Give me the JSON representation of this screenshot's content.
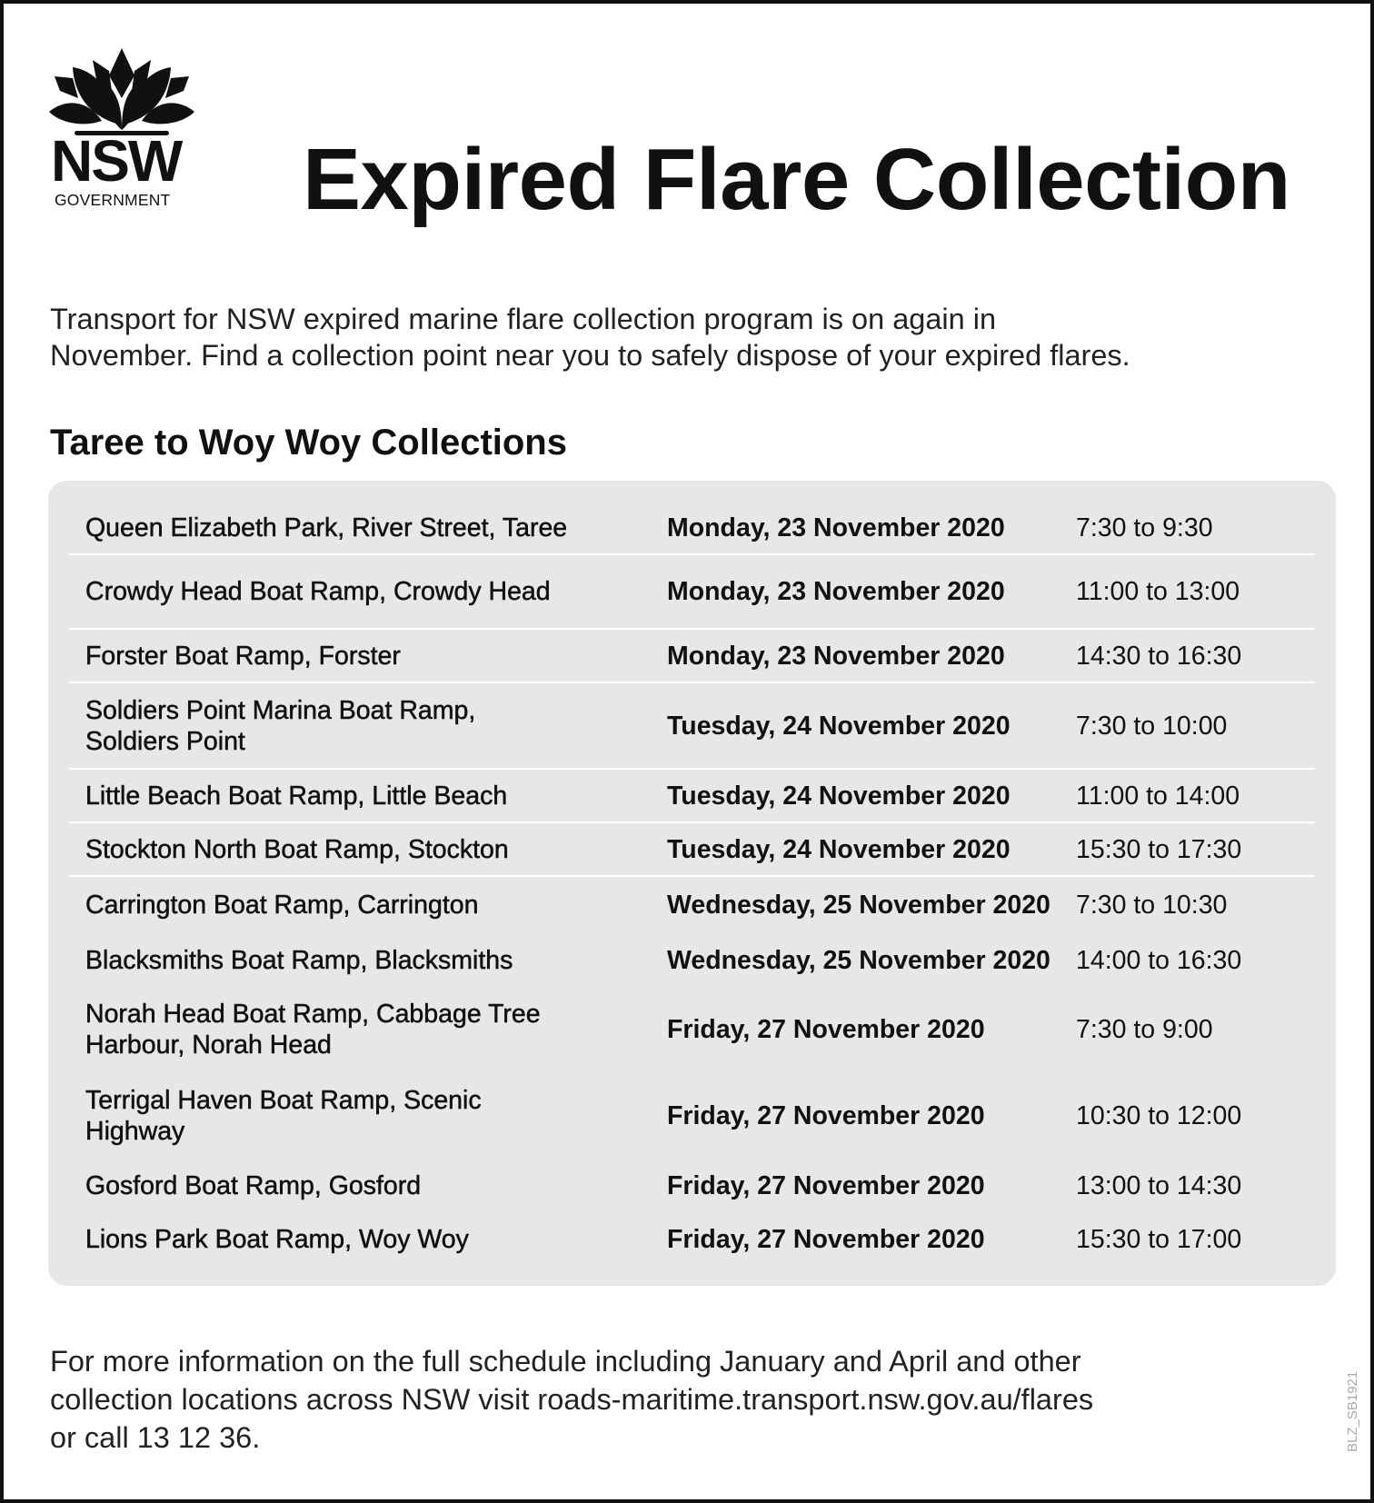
{
  "logo": {
    "name": "NSW",
    "subtitle": "GOVERNMENT"
  },
  "title": "Expired Flare Collection",
  "intro": [
    "Transport for NSW expired marine flare collection program is on again in",
    "November. Find a collection point near you to safely dispose of your expired flares."
  ],
  "section_heading": "Taree to Woy Woy Collections",
  "collections": [
    {
      "location": "Queen Elizabeth Park, River Street, Taree",
      "date": "Monday, 23 November 2020",
      "time": "7:30 to 9:30"
    },
    {
      "location": "Crowdy Head Boat Ramp, Crowdy Head",
      "date": "Monday, 23 November 2020",
      "time": "11:00 to 13:00"
    },
    {
      "location": "Forster Boat Ramp, Forster",
      "date": "Monday, 23 November 2020",
      "time": "14:30 to 16:30"
    },
    {
      "location": "Soldiers Point Marina Boat Ramp, Soldiers Point",
      "date": "Tuesday, 24 November 2020",
      "time": "7:30 to 10:00"
    },
    {
      "location": "Little Beach Boat Ramp, Little Beach",
      "date": "Tuesday, 24 November 2020",
      "time": "11:00 to 14:00"
    },
    {
      "location": "Stockton North Boat Ramp, Stockton",
      "date": "Tuesday, 24 November 2020",
      "time": "15:30 to 17:30"
    },
    {
      "location": "Carrington Boat Ramp, Carrington",
      "date": "Wednesday, 25 November 2020",
      "time": "7:30 to 10:30"
    },
    {
      "location": "Blacksmiths Boat Ramp, Blacksmiths",
      "date": "Wednesday, 25 November 2020",
      "time": "14:00 to 16:30"
    },
    {
      "location": "Norah Head Boat Ramp, Cabbage Tree Harbour, Norah Head",
      "date": "Friday, 27 November 2020",
      "time": "7:30 to 9:00"
    },
    {
      "location": "Terrigal Haven Boat Ramp, Scenic Highway",
      "date": "Friday, 27 November 2020",
      "time": "10:30 to 12:00"
    },
    {
      "location": "Gosford Boat Ramp, Gosford",
      "date": "Friday, 27 November 2020",
      "time": "13:00 to 14:30"
    },
    {
      "location": "Lions Park Boat Ramp, Woy Woy",
      "date": "Friday, 27 November 2020",
      "time": "15:30 to 17:00"
    }
  ],
  "footer": [
    "For more information on the full schedule including January and April and other",
    "collection locations across NSW visit roads-maritime.transport.nsw.gov.au/flares",
    "or call 13 12 36."
  ],
  "code": "BLZ_SB1921"
}
